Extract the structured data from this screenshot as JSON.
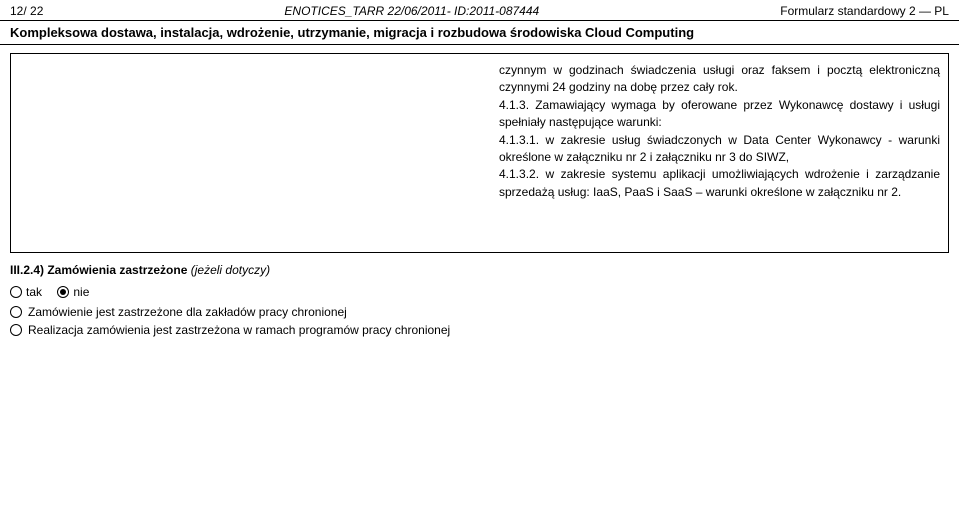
{
  "header": {
    "left": "12/ 22",
    "center": "ENOTICES_TARR 22/06/2011- ID:2011-087444",
    "right": "Formularz standardowy 2 — PL"
  },
  "title": "Kompleksowa dostawa, instalacja, wdrożenie, utrzymanie, migracja i rozbudowa środowiska Cloud Computing",
  "content": {
    "p1": "czynnym w godzinach świadczenia usługi oraz faksem i pocztą elektroniczną czynnymi 24 godziny na dobę przez cały rok.",
    "p2": "4.1.3. Zamawiający wymaga by oferowane przez Wykonawcę dostawy i usługi spełniały następujące warunki:",
    "p3": "4.1.3.1. w zakresie usług świadczonych w Data Center Wykonawcy - warunki określone w załączniku nr 2 i załączniku nr 3 do SIWZ,",
    "p4": "4.1.3.2. w zakresie systemu aplikacji umożliwiających wdrożenie i zarządzanie sprzedażą usług: IaaS, PaaS i SaaS – warunki określone w załączniku nr 2."
  },
  "section": {
    "label": "III.2.4) Zamówienia zastrzeżone",
    "labelSuffix": "(jeżeli dotyczy)"
  },
  "options": {
    "yes": "tak",
    "no": "nie"
  },
  "bullets": {
    "b1": "Zamówienie jest zastrzeżone dla zakładów pracy chronionej",
    "b2": "Realizacja zamówienia jest zastrzeżona w ramach programów pracy chronionej"
  }
}
